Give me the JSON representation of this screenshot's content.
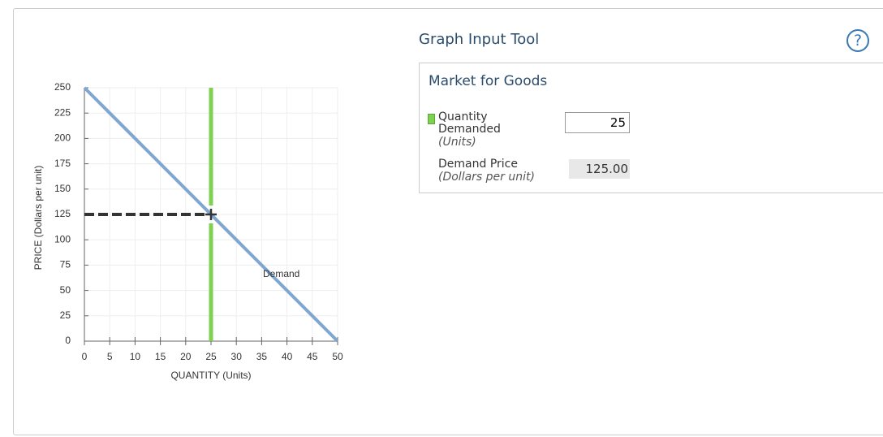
{
  "chart_data": {
    "type": "line",
    "x_label": "QUANTITY (Units)",
    "y_label": "PRICE (Dollars per unit)",
    "xlim": [
      0,
      50
    ],
    "ylim": [
      0,
      250
    ],
    "xticks": [
      0,
      5,
      10,
      15,
      20,
      25,
      30,
      35,
      40,
      45,
      50
    ],
    "yticks": [
      0,
      25,
      50,
      75,
      100,
      125,
      150,
      175,
      200,
      225,
      250
    ],
    "grid": true,
    "series": [
      {
        "name": "Demand",
        "color": "#7fa7cf",
        "x": [
          0,
          50
        ],
        "values": [
          250,
          0
        ]
      }
    ],
    "vertical_line": {
      "x": 25,
      "color": "#7ed24f"
    },
    "crosshair": {
      "x": 25,
      "y": 125,
      "color": "#333333"
    }
  },
  "tool": {
    "title": "Graph Input Tool",
    "help": "?",
    "panel_title": "Market for Goods",
    "fields": [
      {
        "label": "Quantity Demanded",
        "unit": "(Units)",
        "value": "25"
      },
      {
        "label": "Demand Price",
        "unit": "(Dollars per unit)",
        "value": "125.00"
      }
    ]
  }
}
